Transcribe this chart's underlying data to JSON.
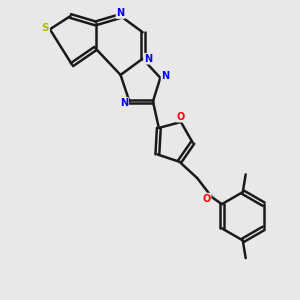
{
  "bg_color": "#e8e8e8",
  "bond_color": "#1a1a1a",
  "N_color": "#0000ff",
  "S_color": "#b8b800",
  "O_color": "#ff0000",
  "line_width": 1.8,
  "dbo": 0.065,
  "fs": 7.0,
  "xlim": [
    0,
    10
  ],
  "ylim": [
    0,
    10
  ]
}
